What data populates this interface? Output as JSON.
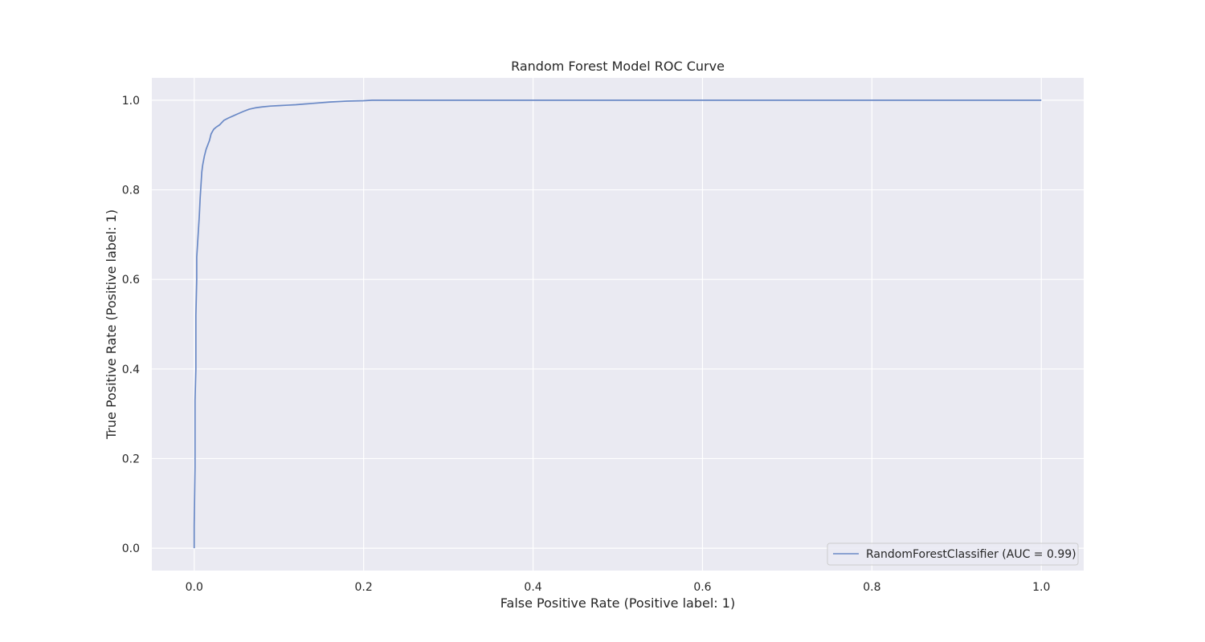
{
  "chart_data": {
    "type": "line",
    "title": "Random Forest Model ROC Curve",
    "xlabel": "False Positive Rate (Positive label: 1)",
    "ylabel": "True Positive Rate (Positive label: 1)",
    "xlim": [
      -0.05,
      1.05
    ],
    "ylim": [
      -0.05,
      1.05
    ],
    "xticks": [
      0.0,
      0.2,
      0.4,
      0.6,
      0.8,
      1.0
    ],
    "xtick_labels": [
      "0.0",
      "0.2",
      "0.4",
      "0.6",
      "0.8",
      "1.0"
    ],
    "yticks": [
      0.0,
      0.2,
      0.4,
      0.6,
      0.8,
      1.0
    ],
    "ytick_labels": [
      "0.0",
      "0.2",
      "0.4",
      "0.6",
      "0.8",
      "1.0"
    ],
    "grid": true,
    "background_color": "#eaeaf2",
    "grid_color": "#ffffff",
    "legend_position": "bottom-right",
    "series": [
      {
        "name": "RandomForestClassifier (AUC = 0.99)",
        "color": "#6a89c6",
        "x": [
          0.0,
          0.0,
          0.001,
          0.001,
          0.002,
          0.002,
          0.003,
          0.003,
          0.004,
          0.005,
          0.006,
          0.007,
          0.008,
          0.009,
          0.01,
          0.012,
          0.014,
          0.016,
          0.018,
          0.02,
          0.023,
          0.026,
          0.03,
          0.035,
          0.04,
          0.046,
          0.052,
          0.058,
          0.065,
          0.072,
          0.08,
          0.09,
          0.1,
          0.11,
          0.12,
          0.14,
          0.16,
          0.18,
          0.2,
          0.21,
          0.3,
          0.4,
          0.6,
          0.8,
          1.0
        ],
        "y": [
          0.0,
          0.05,
          0.18,
          0.33,
          0.4,
          0.52,
          0.6,
          0.65,
          0.68,
          0.71,
          0.74,
          0.78,
          0.81,
          0.84,
          0.855,
          0.875,
          0.89,
          0.9,
          0.91,
          0.925,
          0.935,
          0.94,
          0.945,
          0.955,
          0.96,
          0.965,
          0.97,
          0.975,
          0.98,
          0.983,
          0.985,
          0.987,
          0.988,
          0.989,
          0.99,
          0.993,
          0.996,
          0.998,
          0.999,
          1.0,
          1.0,
          1.0,
          1.0,
          1.0,
          1.0
        ]
      }
    ]
  }
}
